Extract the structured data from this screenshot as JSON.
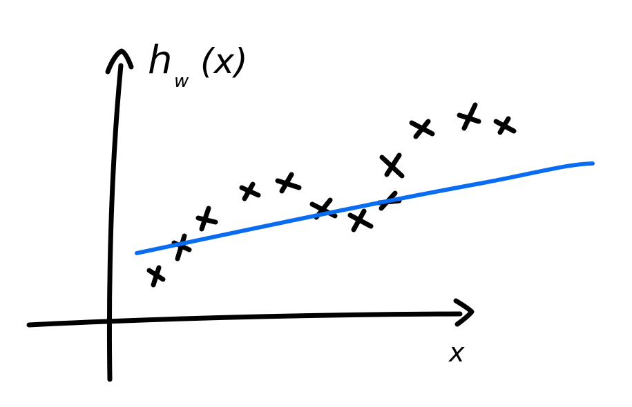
{
  "y_axis_label": {
    "main": "h",
    "subscript": "w",
    "argument": "(x)"
  },
  "x_axis_label": "x"
}
